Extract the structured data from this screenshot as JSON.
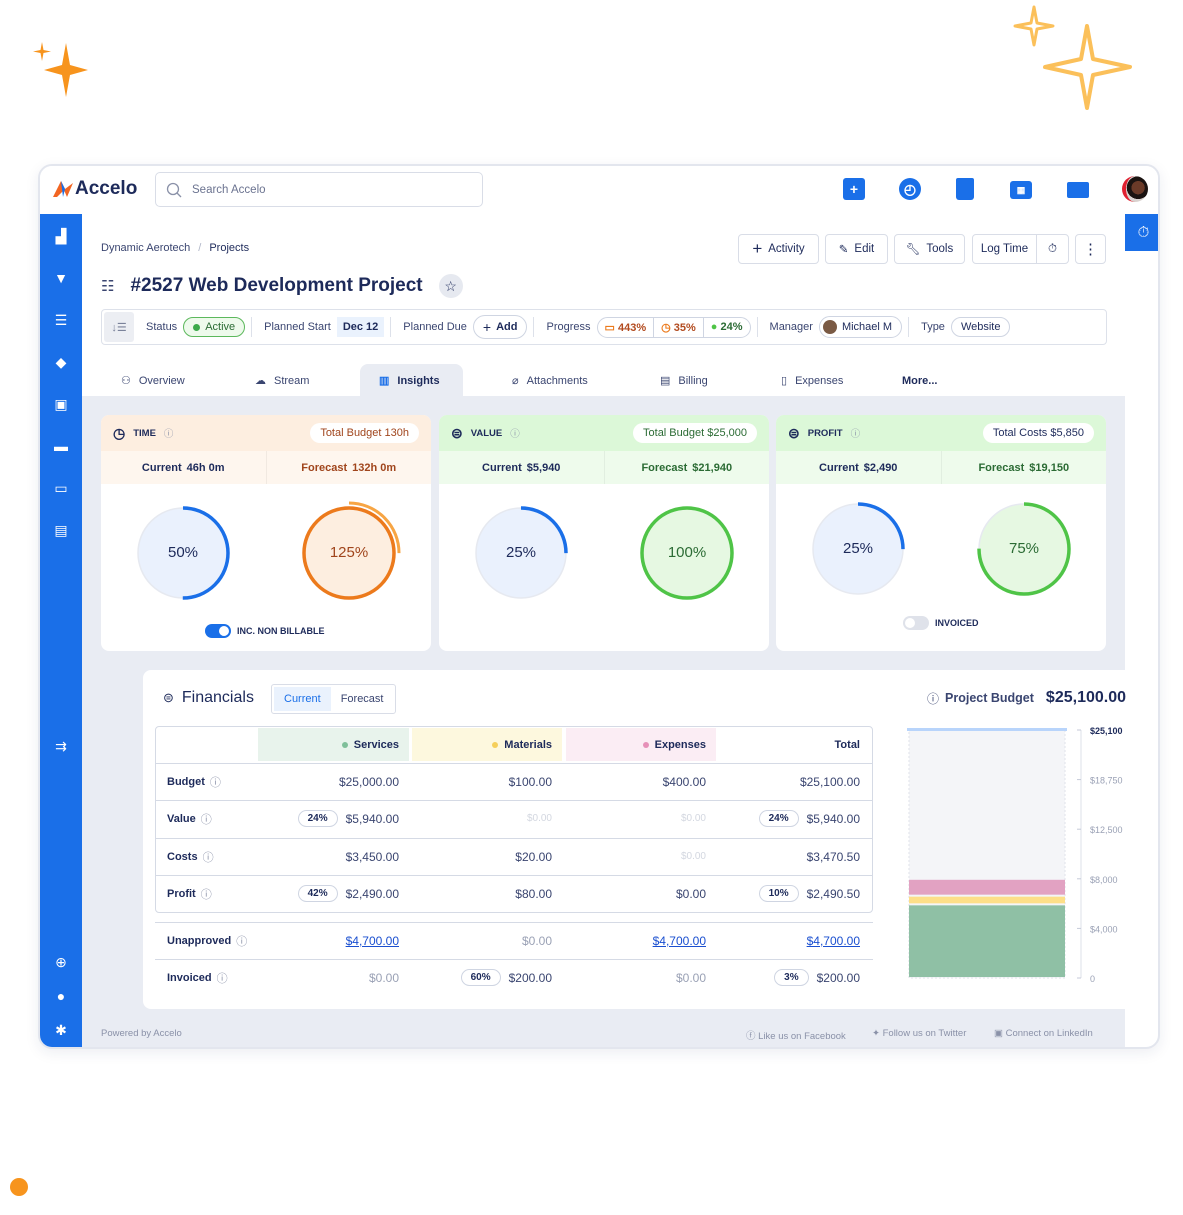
{
  "app": {
    "logo": "Accelo",
    "search_placeholder": "Search Accelo"
  },
  "topbar": {
    "icons": [
      "add-icon",
      "clock-icon",
      "clipboard-icon",
      "calendar-icon",
      "inbox-icon",
      "avatar"
    ]
  },
  "sidebar": {
    "icons": [
      "building-icon",
      "funnel-icon",
      "projects-icon",
      "tickets-icon",
      "retainers-icon",
      "reports-icon",
      "dashboard-icon",
      "forms-icon",
      "collapse-icon",
      "help-icon",
      "lightbulb-icon",
      "settings-icon"
    ]
  },
  "breadcrumb": {
    "items": [
      "Dynamic Aerotech",
      "Projects"
    ],
    "sep": "/"
  },
  "page": {
    "title": "#2527 Web Development Project"
  },
  "actions": {
    "activity": "Activity",
    "edit": "Edit",
    "tools": "Tools",
    "log_time": "Log Time",
    "more": "⋮"
  },
  "props": {
    "status_label": "Status",
    "status": "Active",
    "planned_start_label": "Planned Start",
    "planned_start": "Dec 12",
    "planned_due_label": "Planned Due",
    "add": "Add",
    "progress_label": "Progress",
    "progress": [
      "443%",
      "35%",
      "24%"
    ],
    "manager_label": "Manager",
    "manager": "Michael M",
    "type_label": "Type",
    "type": "Website"
  },
  "tabs": [
    {
      "label": "Overview"
    },
    {
      "label": "Stream"
    },
    {
      "label": "Insights",
      "active": true
    },
    {
      "label": "Attachments"
    },
    {
      "label": "Billing"
    },
    {
      "label": "Expenses"
    },
    {
      "label": "More..."
    }
  ],
  "cards": [
    {
      "title": "TIME",
      "total": "Total Budget  130h",
      "current_label": "Current",
      "current": "46h 0m",
      "forecast_label": "Forecast",
      "forecast": "132h 0m",
      "current_pct": 50,
      "forecast_pct": 125,
      "current_text": "50%",
      "forecast_text": "125%",
      "toggle_label": "INC. NON BILLABLE",
      "toggle_on": true,
      "head_bg": "#fdeee0",
      "sub_bg": "#fef6ee",
      "total_color": "#a0451c",
      "forecast_color": "#a0451c",
      "forecast_ring": "#ec7a1c",
      "forecast_fill": "#fdeee0"
    },
    {
      "title": "VALUE",
      "total": "Total Budget  $25,000",
      "current_label": "Current",
      "current": "$5,940",
      "forecast_label": "Forecast",
      "forecast": "$21,940",
      "current_pct": 25,
      "forecast_pct": 100,
      "current_text": "25%",
      "forecast_text": "100%",
      "head_bg": "#dcf8d8",
      "sub_bg": "#eefbec",
      "total_color": "#2b6b34",
      "forecast_color": "#2b6b34",
      "forecast_ring": "#4fc447",
      "forecast_fill": "#e6f8e2"
    },
    {
      "title": "PROFIT",
      "total": "Total Costs  $5,850",
      "current_label": "Current",
      "current": "$2,490",
      "forecast_label": "Forecast",
      "forecast": "$19,150",
      "current_pct": 25,
      "forecast_pct": 75,
      "current_text": "25%",
      "forecast_text": "75%",
      "toggle_label": "INVOICED",
      "toggle_on": false,
      "head_bg": "#dcf8d8",
      "sub_bg": "#eefbec",
      "total_color": "#1d2a5a",
      "forecast_color": "#2b6b34",
      "forecast_ring": "#4fc447",
      "forecast_fill": "#e6f8e2"
    }
  ],
  "financials": {
    "title": "Financials",
    "toggle": [
      "Current",
      "Forecast"
    ],
    "budget_label": "Project Budget",
    "budget_value": "$25,100.00",
    "columns": [
      {
        "label": "Services",
        "dot": "#7fbf9a",
        "bg": "#e8f3ec"
      },
      {
        "label": "Materials",
        "dot": "#f5cf5b",
        "bg": "#fdf8de"
      },
      {
        "label": "Expenses",
        "dot": "#e690b8",
        "bg": "#fbedf4"
      },
      {
        "label": "Total"
      }
    ],
    "rows": [
      {
        "label": "Budget",
        "cells": [
          {
            "t": "$25,000.00"
          },
          {
            "t": "$100.00"
          },
          {
            "t": "$400.00"
          },
          {
            "t": "$25,100.00"
          }
        ]
      },
      {
        "label": "Value",
        "cells": [
          {
            "t": "$5,940.00",
            "b": "24%"
          },
          {
            "t": "$0.00",
            "s": "faded"
          },
          {
            "t": "$0.00",
            "s": "faded"
          },
          {
            "t": "$5,940.00",
            "b": "24%"
          }
        ]
      },
      {
        "label": "Costs",
        "cells": [
          {
            "t": "$3,450.00"
          },
          {
            "t": "$20.00"
          },
          {
            "t": "$0.00",
            "s": "faded"
          },
          {
            "t": "$3,470.50"
          }
        ]
      },
      {
        "label": "Profit",
        "cells": [
          {
            "t": "$2,490.00",
            "b": "42%"
          },
          {
            "t": "$80.00"
          },
          {
            "t": "$0.00"
          },
          {
            "t": "$2,490.50",
            "b": "10%"
          }
        ]
      },
      {
        "label": "Unapproved",
        "cells": [
          {
            "t": "$4,700.00",
            "s": "link"
          },
          {
            "t": "$0.00",
            "s": "muted"
          },
          {
            "t": "$4,700.00",
            "s": "link"
          },
          {
            "t": "$4,700.00",
            "s": "link"
          }
        ]
      },
      {
        "label": "Invoiced",
        "cells": [
          {
            "t": "$0.00",
            "s": "muted"
          },
          {
            "t": "$200.00",
            "b": "60%"
          },
          {
            "t": "$0.00",
            "s": "muted"
          },
          {
            "t": "$200.00",
            "b": "3%"
          }
        ]
      }
    ]
  },
  "chart_data": {
    "type": "bar",
    "stacked": true,
    "categories": [
      "Project Budget"
    ],
    "ylim": [
      0,
      25100
    ],
    "ticks": [
      "0",
      "$4,000",
      "$8,000",
      "$12,500",
      "$18,750",
      "$25,100"
    ],
    "tick_values": [
      0,
      4000,
      8000,
      12500,
      18750,
      25100
    ],
    "series": [
      {
        "values": [
          5940
        ],
        "color": "#8fc0a5"
      },
      {
        "values": [
          700
        ],
        "color": "#fddf89"
      },
      {
        "values": [
          1360
        ],
        "color": "#e2a2c2"
      }
    ],
    "budget_line": 25100,
    "budget_color": "#b8d4fb"
  },
  "footer": {
    "powered": "Powered by Accelo",
    "facebook": "Like us on Facebook",
    "twitter": "Follow us on Twitter",
    "linkedin": "Connect on LinkedIn"
  },
  "colors": {
    "accent": "#1a6fe8",
    "navy": "#1d2a5a",
    "sparkle_orange": "#f7941d",
    "sparkle_yellow": "#fbc05a"
  }
}
